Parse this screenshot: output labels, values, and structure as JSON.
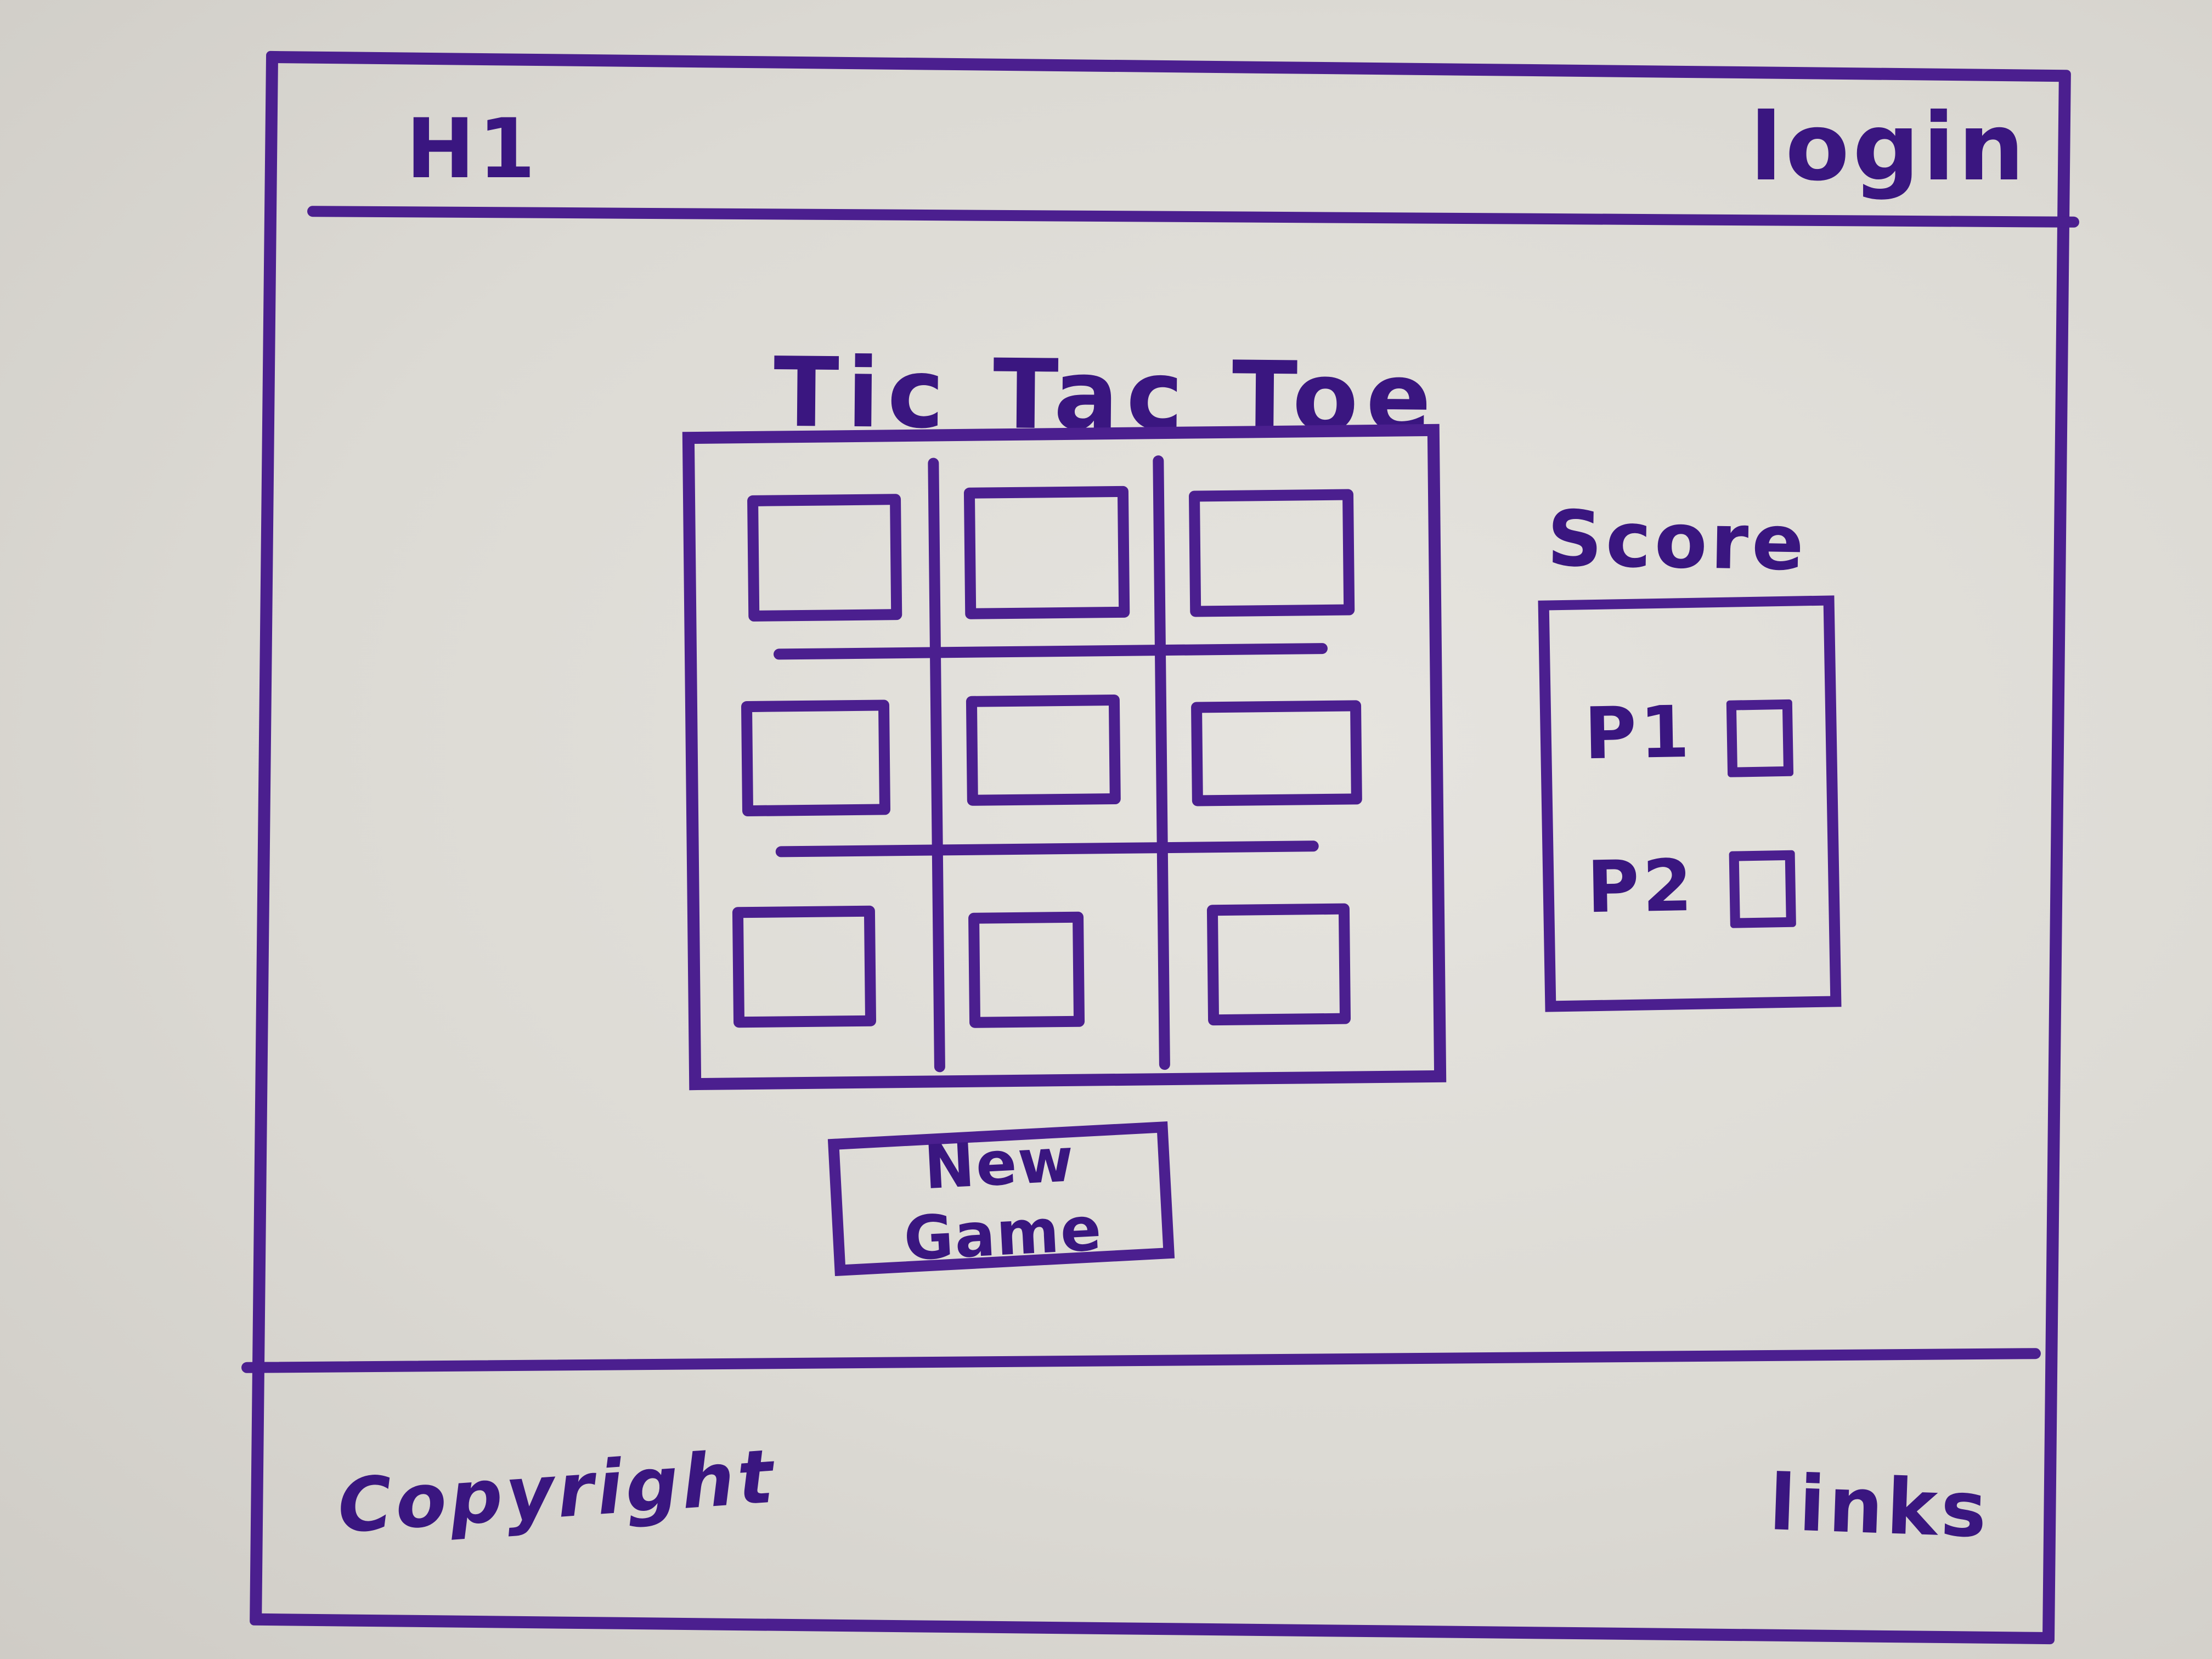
{
  "header": {
    "brand": "H1",
    "login_label": "login"
  },
  "main": {
    "title": "Tic Tac Toe",
    "board": {
      "rows": 3,
      "cols": 3
    },
    "score": {
      "title": "Score",
      "players": [
        "P1",
        "P2"
      ]
    },
    "new_game_label": "New Game"
  },
  "footer": {
    "copyright": "Copyright",
    "links_label": "links"
  },
  "colors": {
    "marker": "#4b1f8f",
    "whiteboard": "#dcdad5"
  }
}
